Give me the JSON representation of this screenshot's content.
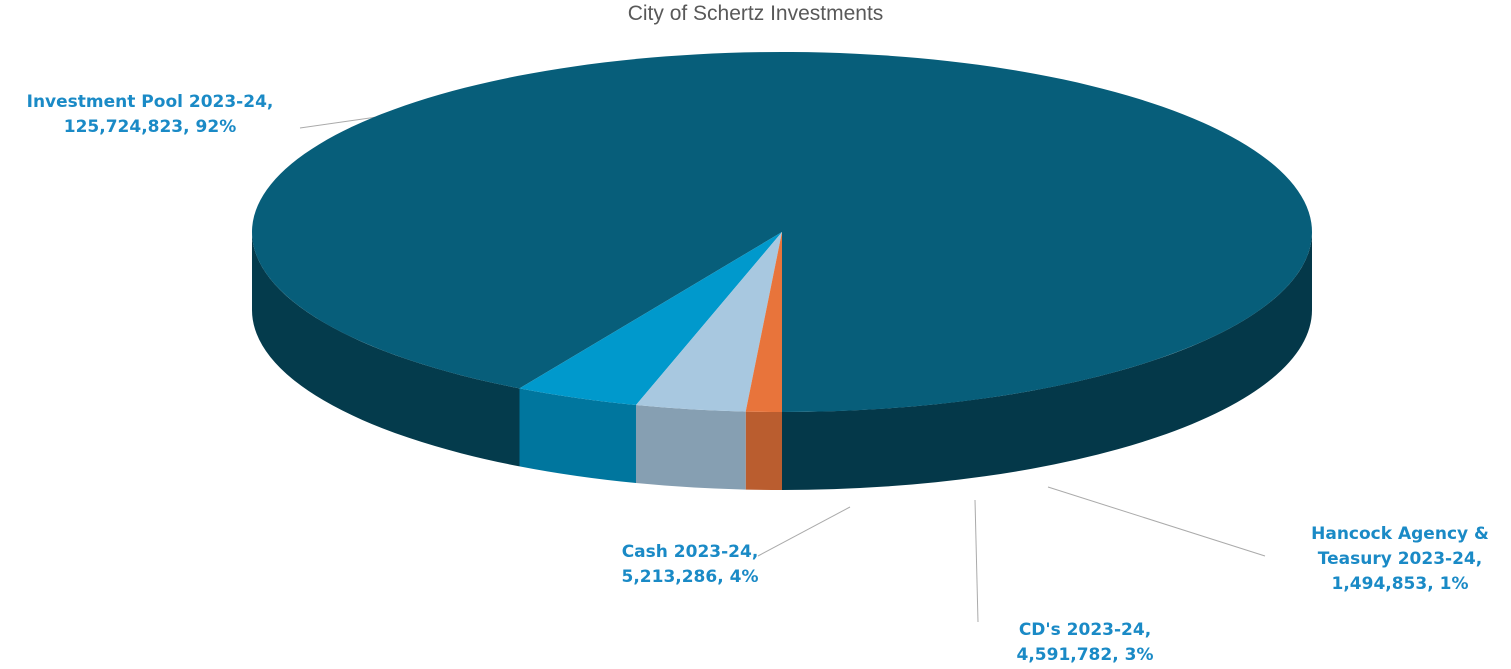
{
  "chart_data": {
    "type": "pie3d",
    "title": "City of Schertz Investments",
    "categories": [
      "Investment Pool 2023-24",
      "Cash 2023-24",
      "CD's 2023-24",
      "Hancock Agency & Teasury 2023-24"
    ],
    "values": [
      125724823,
      5213286,
      4591782,
      1494853
    ],
    "value_labels": [
      "125,724,823",
      "5,213,286",
      "4,591,782",
      "1,494,853"
    ],
    "percents": [
      92,
      4,
      3,
      1
    ],
    "percent_labels": [
      "92%",
      "4%",
      "3%",
      "1%"
    ],
    "colors": [
      "#075e7a",
      "#0099cc",
      "#a8c8e0",
      "#e8743b"
    ]
  }
}
